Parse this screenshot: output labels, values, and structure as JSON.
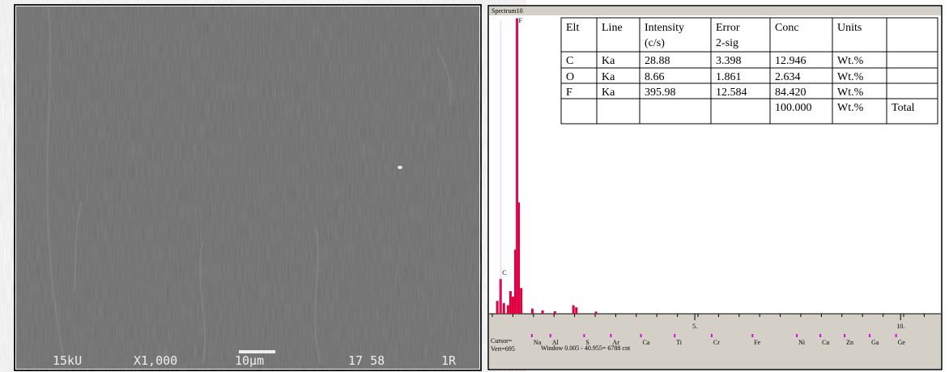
{
  "sem": {
    "voltage": "15kU",
    "magnification": "X1,000",
    "scale": "10μm",
    "code": "17 58",
    "id": "1R"
  },
  "spectrum": {
    "title": "Spectrum10",
    "table": {
      "header": [
        "Elt",
        "Line",
        "Intensity (c/s)",
        "Error 2-sig",
        "Conc",
        "Units",
        null
      ],
      "rows": [
        [
          "C",
          "Ka",
          "28.88",
          "3.398",
          "12.946",
          "Wt.%",
          null
        ],
        [
          "O",
          "Ka",
          "8.66",
          "1.861",
          "2.634",
          "Wt.%",
          null
        ],
        [
          "F",
          "Ka",
          "395.98",
          "12.584",
          "84.420",
          "Wt.%",
          null
        ],
        [
          null,
          null,
          null,
          null,
          "100.000",
          "Wt.%",
          "Total"
        ]
      ]
    },
    "xlim": [
      0,
      10.98
    ],
    "ylim": [
      0,
      695
    ],
    "xticks": [
      {
        "value": 5,
        "label": "5."
      },
      {
        "value": 10,
        "label": "10."
      }
    ],
    "peak_labels": [
      {
        "x": 0.28,
        "label": "C"
      },
      {
        "x": 0.68,
        "label": "F"
      }
    ],
    "x": [
      0.2,
      0.28,
      0.36,
      0.46,
      0.52,
      0.58,
      0.64,
      0.68,
      0.72,
      0.78,
      1.05,
      1.3,
      1.6,
      2.05,
      2.12,
      2.6
    ],
    "values": [
      30,
      81,
      25,
      20,
      53,
      40,
      150,
      690,
      260,
      60,
      12,
      8,
      6,
      20,
      15,
      5
    ],
    "color": "#e0003c",
    "elements": [
      "Na",
      "Al",
      "S",
      "Ar",
      "Ca",
      "Ti",
      "Cr",
      "Fe",
      "Ni",
      "Cu",
      "Zn",
      "Ga",
      "Ge"
    ],
    "element_x": [
      1.04,
      1.49,
      2.31,
      2.96,
      3.69,
      4.51,
      5.41,
      6.4,
      7.48,
      8.05,
      8.64,
      9.25,
      9.89
    ],
    "cursor": "Cursor=",
    "vert": "Vert=695",
    "window": "Window 0.005 - 40.955=  6788 cnt"
  }
}
